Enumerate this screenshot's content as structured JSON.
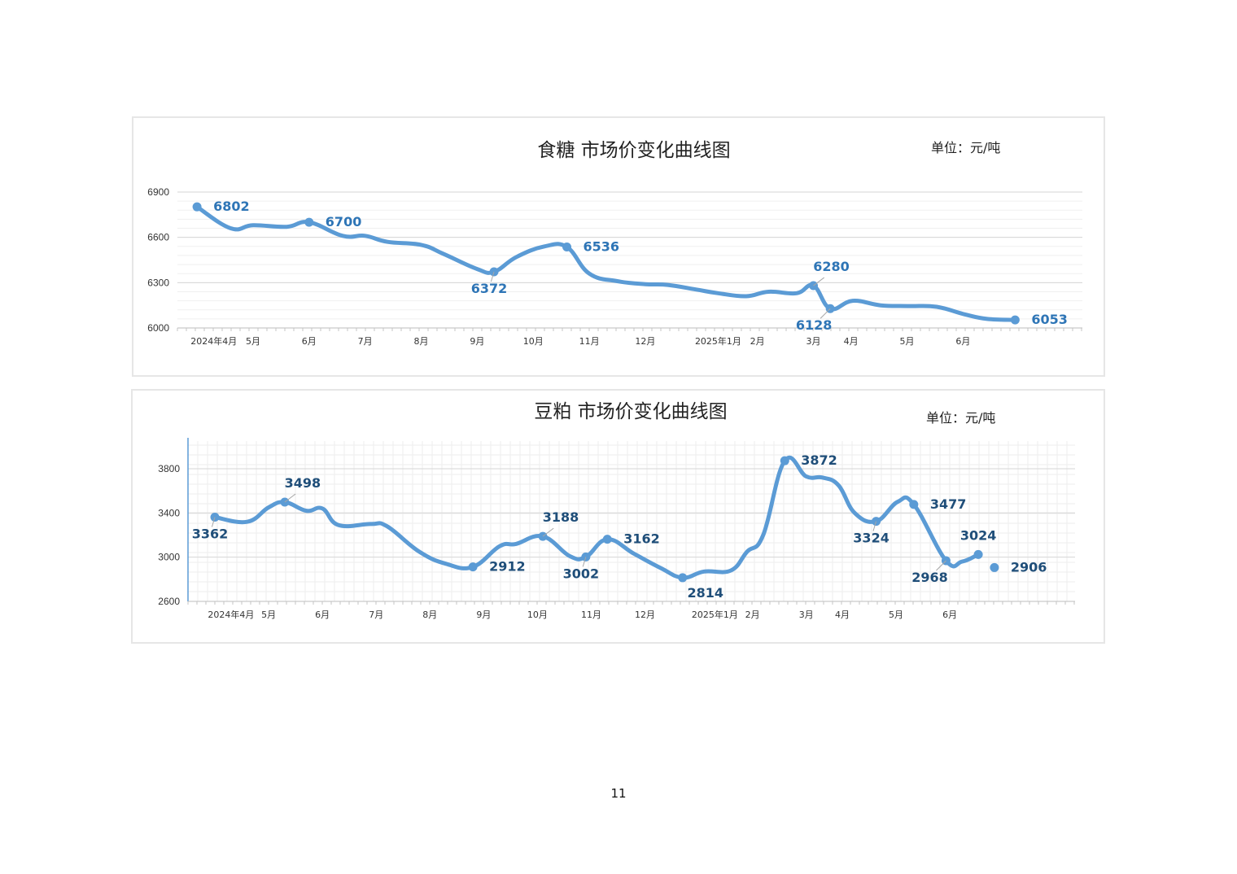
{
  "page_number": "11",
  "colors": {
    "line": "#5b9bd5",
    "label_top": "#2e75b6",
    "label_bottom": "#1f4e79",
    "grid": "#e3e3e3",
    "axis_text": "#333333",
    "title_text": "#222222"
  },
  "chart_data": [
    {
      "type": "line",
      "title": "食糖 市场价变化曲线图",
      "unit": "单位：元/吨",
      "ylim": [
        6000,
        6900
      ],
      "yticks": [
        6000,
        6300,
        6600,
        6900
      ],
      "grid": "horizontal",
      "x_range": [
        -0.35,
        15.8
      ],
      "xticks": [
        {
          "x": 0.3,
          "label": "2024年4月"
        },
        {
          "x": 1.0,
          "label": "5月"
        },
        {
          "x": 2.0,
          "label": "6月"
        },
        {
          "x": 3.0,
          "label": "7月"
        },
        {
          "x": 4.0,
          "label": "8月"
        },
        {
          "x": 5.0,
          "label": "9月"
        },
        {
          "x": 6.0,
          "label": "10月"
        },
        {
          "x": 7.0,
          "label": "11月"
        },
        {
          "x": 8.0,
          "label": "12月"
        },
        {
          "x": 9.3,
          "label": "2025年1月"
        },
        {
          "x": 10.0,
          "label": "2月"
        },
        {
          "x": 11.0,
          "label": "3月"
        },
        {
          "x": 11.67,
          "label": "4月"
        },
        {
          "x": 12.67,
          "label": "5月"
        },
        {
          "x": 13.67,
          "label": "6月"
        }
      ],
      "series": [
        {
          "x": [
            0,
            0.6,
            1.0,
            1.6,
            2.0,
            2.6,
            3.0,
            3.4,
            4.0,
            4.4,
            5.0,
            5.3,
            5.7,
            6.2,
            6.6,
            7.0,
            7.5,
            8.0,
            8.4,
            8.9,
            9.3,
            9.8,
            10.2,
            10.7,
            11.0,
            11.3,
            11.7,
            12.2,
            12.7,
            13.2,
            13.7,
            14.1,
            14.6
          ],
          "y": [
            6802,
            6660,
            6680,
            6670,
            6700,
            6610,
            6610,
            6570,
            6550,
            6490,
            6390,
            6372,
            6470,
            6540,
            6536,
            6360,
            6310,
            6290,
            6285,
            6255,
            6230,
            6210,
            6240,
            6230,
            6280,
            6128,
            6180,
            6150,
            6145,
            6140,
            6090,
            6060,
            6053
          ]
        }
      ],
      "annotations": [
        {
          "x": 0,
          "y": 6802,
          "label": "6802",
          "pos": "right"
        },
        {
          "x": 2.0,
          "y": 6700,
          "label": "6700",
          "pos": "right"
        },
        {
          "x": 5.3,
          "y": 6372,
          "label": "6372",
          "pos": "below"
        },
        {
          "x": 6.6,
          "y": 6536,
          "label": "6536",
          "pos": "right"
        },
        {
          "x": 11.0,
          "y": 6280,
          "label": "6280",
          "pos": "above-right"
        },
        {
          "x": 11.3,
          "y": 6128,
          "label": "6128",
          "pos": "below-left"
        },
        {
          "x": 14.6,
          "y": 6053,
          "label": "6053",
          "pos": "right"
        }
      ]
    },
    {
      "type": "line",
      "title": "豆粕 市场价变化曲线图",
      "unit": "单位：元/吨",
      "ylim": [
        2600,
        4050
      ],
      "yticks": [
        2600,
        3000,
        3400,
        3800
      ],
      "grid": "both",
      "x_range": [
        -0.5,
        16.0
      ],
      "xticks": [
        {
          "x": 0.3,
          "label": "2024年4月"
        },
        {
          "x": 1.0,
          "label": "5月"
        },
        {
          "x": 2.0,
          "label": "6月"
        },
        {
          "x": 3.0,
          "label": "7月"
        },
        {
          "x": 4.0,
          "label": "8月"
        },
        {
          "x": 5.0,
          "label": "9月"
        },
        {
          "x": 6.0,
          "label": "10月"
        },
        {
          "x": 7.0,
          "label": "11月"
        },
        {
          "x": 8.0,
          "label": "12月"
        },
        {
          "x": 9.3,
          "label": "2025年1月"
        },
        {
          "x": 10.0,
          "label": "2月"
        },
        {
          "x": 11.0,
          "label": "3月"
        },
        {
          "x": 11.67,
          "label": "4月"
        },
        {
          "x": 12.67,
          "label": "5月"
        },
        {
          "x": 13.67,
          "label": "6月"
        }
      ],
      "series": [
        {
          "x": [
            0,
            0.6,
            1.0,
            1.3,
            1.7,
            2.0,
            2.3,
            2.9,
            3.2,
            3.8,
            4.3,
            4.8,
            5.3,
            5.6,
            6.1,
            6.6,
            6.9,
            7.3,
            7.8,
            8.3,
            8.7,
            9.1,
            9.6,
            9.9,
            10.2,
            10.6,
            11.0,
            11.3,
            11.6,
            11.9,
            12.3,
            12.7,
            13.0,
            13.6,
            13.9,
            14.2
          ],
          "y": [
            3362,
            3320,
            3450,
            3498,
            3420,
            3440,
            3290,
            3300,
            3280,
            3050,
            2940,
            2912,
            3100,
            3120,
            3188,
            3010,
            3002,
            3162,
            3030,
            2900,
            2814,
            2870,
            2880,
            3050,
            3200,
            3872,
            3730,
            3720,
            3650,
            3400,
            3324,
            3500,
            3477,
            2968,
            2960,
            3024
          ]
        }
      ],
      "annotations": [
        {
          "x": 0,
          "y": 3362,
          "label": "3362",
          "pos": "below"
        },
        {
          "x": 1.3,
          "y": 3498,
          "label": "3498",
          "pos": "above-right"
        },
        {
          "x": 4.8,
          "y": 2912,
          "label": "2912",
          "pos": "right"
        },
        {
          "x": 6.1,
          "y": 3188,
          "label": "3188",
          "pos": "above-right"
        },
        {
          "x": 6.9,
          "y": 3002,
          "label": "3002",
          "pos": "below"
        },
        {
          "x": 7.3,
          "y": 3162,
          "label": "3162",
          "pos": "right"
        },
        {
          "x": 8.7,
          "y": 2814,
          "label": "2814",
          "pos": "below-right"
        },
        {
          "x": 10.6,
          "y": 3872,
          "label": "3872",
          "pos": "right"
        },
        {
          "x": 12.3,
          "y": 3324,
          "label": "3324",
          "pos": "below"
        },
        {
          "x": 13.0,
          "y": 3477,
          "label": "3477",
          "pos": "right"
        },
        {
          "x": 13.6,
          "y": 2968,
          "label": "2968",
          "pos": "below-left"
        },
        {
          "x": 14.2,
          "y": 3024,
          "label": "3024",
          "pos": "above"
        },
        {
          "x": 14.5,
          "y": 2906,
          "label": "2906",
          "pos": "right"
        }
      ]
    }
  ]
}
